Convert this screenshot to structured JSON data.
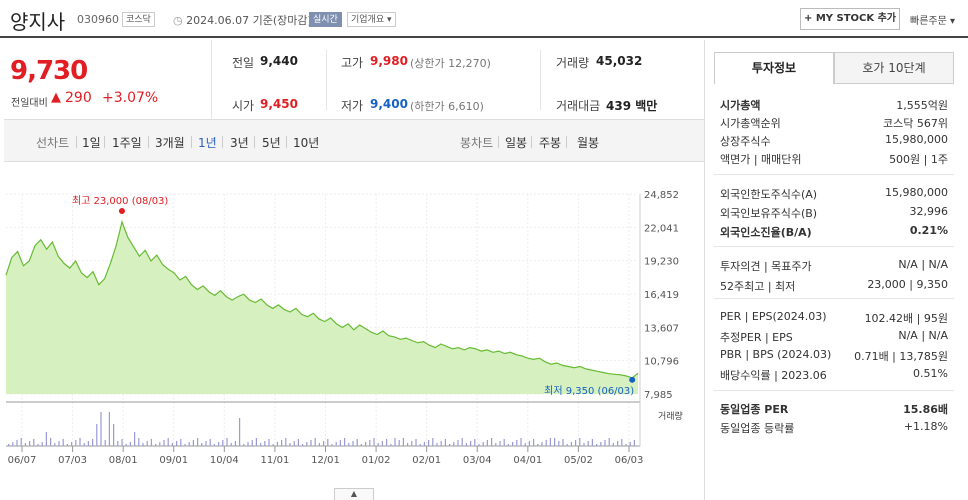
{
  "header": {
    "title": "양지사",
    "code": "030960",
    "market": "코스닥",
    "date": "2024.06.07  기준(장마감)",
    "realtime": "실시간",
    "corp_info": "기업개요",
    "mystock": "+ MY STOCK 추가",
    "quick_order": "빠른주문"
  },
  "price": {
    "current": "9,730",
    "change_label": "전일대비",
    "change_arrow": "▲",
    "change": "290",
    "change_pct": "+3.07%"
  },
  "stats": {
    "prev_label": "전일",
    "prev": "9,440",
    "high_label": "고가",
    "high": "9,980",
    "upper_limit": "(상한가 12,270)",
    "volume_label": "거래량",
    "volume": "45,032",
    "open_label": "시가",
    "open": "9,450",
    "low_label": "저가",
    "low": "9,400",
    "lower_limit": "(하한가 6,610)",
    "amount_label": "거래대금",
    "amount": "439 백만"
  },
  "toolbar": {
    "line_chart_label": "선차트",
    "periods": [
      "1일",
      "1주일",
      "3개월",
      "1년",
      "3년",
      "5년",
      "10년"
    ],
    "selected_period": "1년",
    "candle_label": "봉차트",
    "candles": [
      "일봉",
      "주봉",
      "월봉"
    ]
  },
  "chart_data": {
    "type": "area",
    "y_ticks": [
      "24,852",
      "22,041",
      "19,230",
      "16,419",
      "13,607",
      "10,796",
      "7,985"
    ],
    "ylim": [
      7985,
      24852
    ],
    "x_ticks": [
      "06/07",
      "07/03",
      "08/01",
      "09/01",
      "10/04",
      "11/01",
      "12/01",
      "01/02",
      "02/01",
      "03/04",
      "04/01",
      "05/02",
      "06/03"
    ],
    "high_label": "최고 23,000 (08/03)",
    "low_label": "최저 9,350 (06/03)",
    "volume_label": "거래량",
    "series": [
      {
        "values": [
          18000,
          19500,
          20000,
          18800,
          19200,
          20500,
          21000,
          20200,
          20800,
          19600,
          19000,
          18600,
          19200,
          18200,
          17800,
          18300,
          17200,
          17700,
          19000,
          20500,
          22500,
          21200,
          20400,
          19600,
          20100,
          19200,
          19700,
          18900,
          18500,
          18200,
          17600,
          17900,
          17200,
          16800,
          17100,
          16600,
          16300,
          16700,
          16200,
          15900,
          16200,
          16400,
          15900,
          15700,
          16000,
          15500,
          15200,
          15500,
          15100,
          14900,
          15200,
          14700,
          14500,
          14800,
          14300,
          14100,
          14400,
          13900,
          13600,
          13900,
          13400,
          13800,
          13500,
          13200,
          13000,
          13300,
          12900,
          12800,
          12600,
          12700,
          12500,
          12300,
          12400,
          12100,
          11900,
          12200,
          12000,
          11800,
          11900,
          11700,
          11900,
          11800,
          11600,
          11700,
          11500,
          11600,
          11400,
          11500,
          11300,
          11200,
          11000,
          10900,
          11000,
          10700,
          10500,
          10600,
          10400,
          10300,
          10200,
          10300,
          10100,
          10000,
          9900,
          9800,
          9700,
          9650,
          9600,
          9500,
          9350,
          9730
        ]
      }
    ]
  },
  "right_panel": {
    "tab_invest": "투자정보",
    "tab_hoga": "호가 10단계",
    "rows1": [
      {
        "k": "시가총액",
        "v": "1,555억원"
      },
      {
        "k": "시가총액순위",
        "v": "코스닥 567위"
      },
      {
        "k": "상장주식수",
        "v": "15,980,000"
      },
      {
        "k": "액면가 | 매매단위",
        "v": "500원 | 1주"
      }
    ],
    "rows2": [
      {
        "k": "외국인한도주식수(A)",
        "v": "15,980,000"
      },
      {
        "k": "외국인보유주식수(B)",
        "v": "32,996"
      },
      {
        "k": "외국인소진율(B/A)",
        "v": "0.21%"
      }
    ],
    "rows3": [
      {
        "k": "투자의견 | 목표주가",
        "v": "N/A | N/A"
      },
      {
        "k": "52주최고 | 최저",
        "v": "23,000 | 9,350"
      }
    ],
    "rows4": [
      {
        "k": "PER | EPS(2024.03)",
        "v": "102.42배 | 95원"
      },
      {
        "k": "추정PER | EPS",
        "v": "N/A | N/A"
      },
      {
        "k": "PBR | BPS (2024.03)",
        "v": "0.71배 | 13,785원"
      },
      {
        "k": "배당수익률 | 2023.06",
        "v": "0.51%"
      }
    ],
    "rows5": [
      {
        "k": "동일업종 PER",
        "v": "15.86배"
      },
      {
        "k": "동일업종 등락률",
        "v": "+1.18%"
      }
    ]
  },
  "colors": {
    "up": "#e01e23",
    "down": "#1561c5",
    "chart_line": "#66bb33",
    "chart_fill": "#d6f0c0"
  }
}
